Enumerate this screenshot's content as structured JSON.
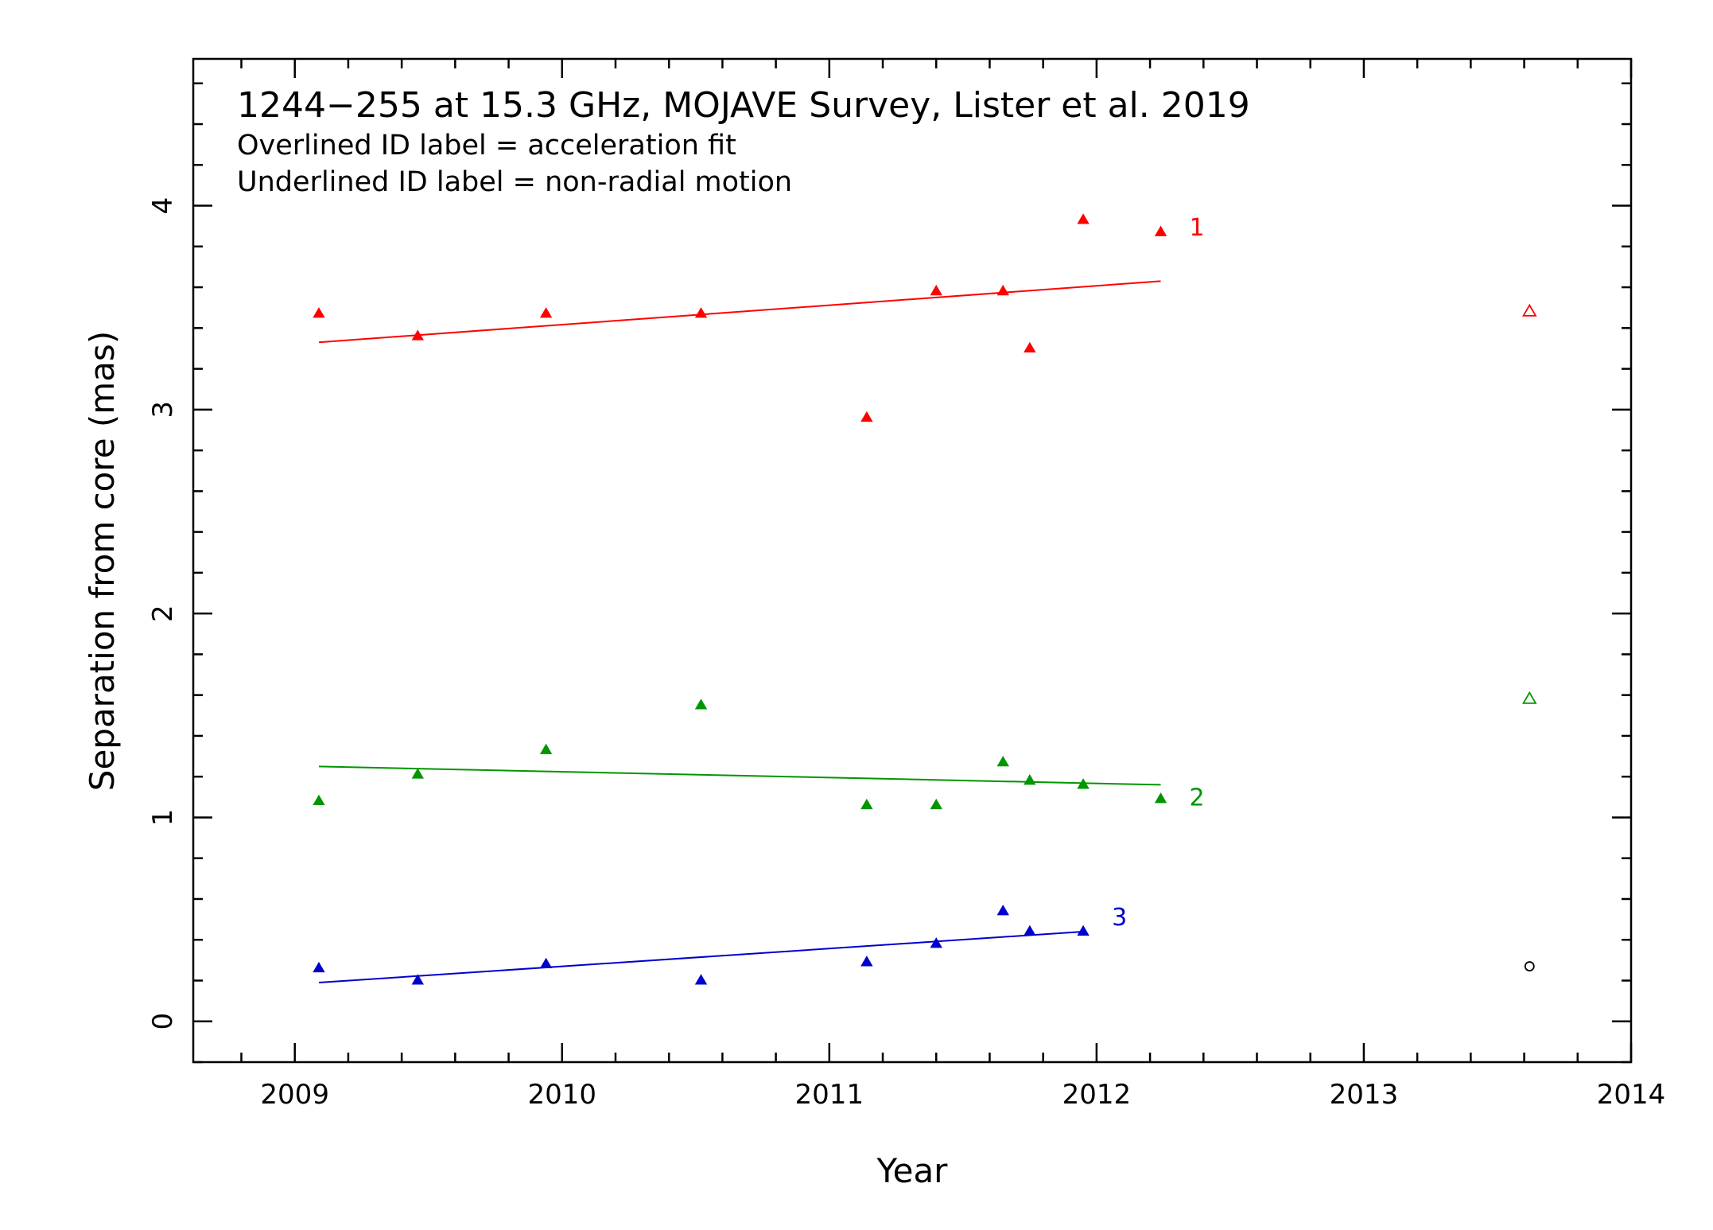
{
  "chart_data": {
    "type": "scatter",
    "title": "1244−255 at 15.3 GHz, MOJAVE Survey, Lister et al. 2019",
    "subtitle_lines": [
      "Overlined ID label = acceleration fit",
      "Underlined ID label = non-radial motion"
    ],
    "xlabel": "Year",
    "ylabel": "Separation from core (mas)",
    "xlim": [
      2008.62,
      2014.0
    ],
    "ylim": [
      -0.2,
      4.72
    ],
    "xticks": [
      "2009",
      "2010",
      "2011",
      "2012",
      "2013",
      "2014"
    ],
    "yticks": [
      "0",
      "1",
      "2",
      "3",
      "4"
    ],
    "grid": false,
    "series": [
      {
        "name": "1",
        "color": "#ff0000",
        "x": [
          2009.09,
          2009.46,
          2009.94,
          2010.52,
          2011.14,
          2011.4,
          2011.65,
          2011.75,
          2011.95,
          2012.24
        ],
        "y": [
          3.47,
          3.36,
          3.47,
          3.47,
          2.96,
          3.58,
          3.58,
          3.3,
          3.93,
          3.87
        ],
        "fit": {
          "x": [
            2009.09,
            2012.24
          ],
          "y": [
            3.33,
            3.63
          ]
        },
        "open_point": {
          "x": 2013.62,
          "y": 3.48
        }
      },
      {
        "name": "2",
        "color": "#009600",
        "x": [
          2009.09,
          2009.46,
          2009.94,
          2010.52,
          2011.14,
          2011.4,
          2011.65,
          2011.75,
          2011.95,
          2012.24
        ],
        "y": [
          1.08,
          1.21,
          1.33,
          1.55,
          1.06,
          1.06,
          1.27,
          1.18,
          1.16,
          1.09
        ],
        "fit": {
          "x": [
            2009.09,
            2012.24
          ],
          "y": [
            1.25,
            1.16
          ]
        },
        "open_point": {
          "x": 2013.62,
          "y": 1.58
        }
      },
      {
        "name": "3",
        "color": "#0000cd",
        "x": [
          2009.09,
          2009.46,
          2009.94,
          2010.52,
          2011.14,
          2011.4,
          2011.65,
          2011.75,
          2011.95
        ],
        "y": [
          0.26,
          0.2,
          0.28,
          0.2,
          0.29,
          0.38,
          0.54,
          0.44,
          0.44
        ],
        "fit": {
          "x": [
            2009.09,
            2011.95
          ],
          "y": [
            0.19,
            0.44
          ]
        }
      }
    ],
    "extra_points": [
      {
        "x": 2013.62,
        "y": 0.27,
        "color": "#000000",
        "marker": "open-circle"
      }
    ]
  }
}
